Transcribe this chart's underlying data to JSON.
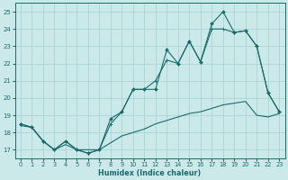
{
  "xlabel": "Humidex (Indice chaleur)",
  "xlim": [
    -0.5,
    23.5
  ],
  "ylim": [
    16.5,
    25.5
  ],
  "yticks": [
    17,
    18,
    19,
    20,
    21,
    22,
    23,
    24,
    25
  ],
  "xticks": [
    0,
    1,
    2,
    3,
    4,
    5,
    6,
    7,
    8,
    9,
    10,
    11,
    12,
    13,
    14,
    15,
    16,
    17,
    18,
    19,
    20,
    21,
    22,
    23
  ],
  "bg_color": "#cce9ea",
  "grid_color": "#a8d4d6",
  "line_color": "#1a6b6b",
  "series1_x": [
    0,
    1,
    2,
    3,
    4,
    5,
    6,
    7,
    8,
    9,
    10,
    11,
    12,
    13,
    14,
    15,
    16,
    17,
    18,
    19,
    20,
    21,
    22,
    23
  ],
  "series1_y": [
    18.5,
    18.3,
    17.5,
    17.0,
    17.5,
    17.0,
    16.8,
    17.0,
    18.8,
    19.2,
    20.5,
    20.5,
    20.5,
    22.8,
    22.0,
    23.3,
    22.1,
    24.3,
    25.0,
    23.8,
    23.9,
    23.0,
    20.3,
    19.2
  ],
  "series2_x": [
    0,
    1,
    2,
    3,
    4,
    5,
    6,
    7,
    8,
    9,
    10,
    11,
    12,
    13,
    14,
    15,
    16,
    17,
    18,
    19,
    20,
    21,
    22,
    23
  ],
  "series2_y": [
    18.5,
    18.3,
    17.5,
    17.0,
    17.5,
    17.0,
    16.8,
    17.0,
    18.5,
    19.2,
    20.5,
    20.5,
    21.0,
    22.2,
    22.0,
    23.3,
    22.1,
    24.0,
    24.0,
    23.8,
    23.9,
    23.0,
    20.3,
    19.2
  ],
  "series3_x": [
    0,
    1,
    2,
    3,
    4,
    5,
    6,
    7,
    8,
    9,
    10,
    11,
    12,
    13,
    14,
    15,
    16,
    17,
    18,
    19,
    20,
    21,
    22,
    23
  ],
  "series3_y": [
    18.4,
    18.3,
    17.5,
    17.0,
    17.3,
    17.0,
    17.0,
    17.0,
    17.4,
    17.8,
    18.0,
    18.2,
    18.5,
    18.7,
    18.9,
    19.1,
    19.2,
    19.4,
    19.6,
    19.7,
    19.8,
    19.0,
    18.9,
    19.1
  ]
}
